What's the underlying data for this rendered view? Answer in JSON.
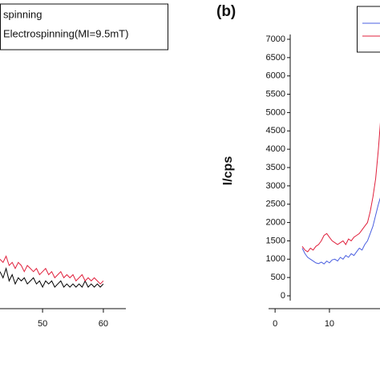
{
  "chart_data": [
    {
      "type": "line",
      "legend": [
        "spinning",
        "Electrospinning(MI=9.5mT)"
      ],
      "x": [
        43,
        43.5,
        44,
        44.5,
        45,
        45.5,
        46,
        46.5,
        47,
        47.5,
        48,
        48.5,
        49,
        49.5,
        50,
        50.5,
        51,
        51.5,
        52,
        52.5,
        53,
        53.5,
        54,
        54.5,
        55,
        55.5,
        56,
        56.5,
        57,
        57.5,
        58,
        58.5,
        59,
        59.5,
        60
      ],
      "series": [
        {
          "color": "#000000",
          "values": [
            12,
            10,
            13,
            9,
            11,
            8,
            10,
            9,
            10,
            8,
            9,
            10,
            8,
            9,
            7,
            9,
            8,
            9,
            7,
            8,
            9,
            7,
            8,
            7,
            8,
            7,
            8,
            7,
            9,
            7,
            8,
            7,
            8,
            7,
            8
          ]
        },
        {
          "color": "#e0203c",
          "values": [
            16,
            15,
            17,
            14,
            15,
            13,
            15,
            14,
            12,
            14,
            13,
            12,
            13,
            11,
            12,
            13,
            11,
            12,
            10,
            11,
            12,
            10,
            11,
            10,
            11,
            9,
            10,
            11,
            9,
            10,
            9,
            10,
            9,
            8,
            9
          ]
        }
      ],
      "xlim": [
        43,
        63.7
      ],
      "xticks": [
        50,
        60
      ],
      "ylim": [
        0,
        100
      ]
    },
    {
      "type": "line",
      "panel_label": "(b)",
      "y_label": "I/cps",
      "x": [
        5,
        5.5,
        6,
        6.5,
        7,
        7.5,
        8,
        8.5,
        9,
        9.5,
        10,
        10.5,
        11,
        11.5,
        12,
        12.5,
        13,
        13.5,
        14,
        14.5,
        15,
        15.5,
        16,
        16.5,
        17,
        17.5,
        18,
        18.5,
        19,
        19.5
      ],
      "series": [
        {
          "color": "#4a5fe0",
          "values": [
            1300,
            1150,
            1050,
            1000,
            950,
            900,
            880,
            920,
            870,
            950,
            900,
            980,
            1000,
            950,
            1050,
            1000,
            1100,
            1050,
            1150,
            1100,
            1200,
            1300,
            1250,
            1400,
            1500,
            1700,
            1900,
            2200,
            2500,
            2750
          ]
        },
        {
          "color": "#e0203c",
          "values": [
            1350,
            1250,
            1200,
            1300,
            1250,
            1350,
            1400,
            1500,
            1650,
            1700,
            1600,
            1500,
            1450,
            1400,
            1450,
            1500,
            1400,
            1550,
            1500,
            1600,
            1650,
            1700,
            1800,
            1900,
            2000,
            2300,
            2700,
            3200,
            4000,
            5000
          ]
        }
      ],
      "xlim": [
        -1.2,
        19.3
      ],
      "xticks": [
        0,
        10
      ],
      "ylim": [
        0,
        7000
      ],
      "yticks": [
        0,
        500,
        1000,
        1500,
        2000,
        2500,
        3000,
        3500,
        4000,
        4500,
        5000,
        5500,
        6000,
        6500,
        7000
      ]
    }
  ]
}
